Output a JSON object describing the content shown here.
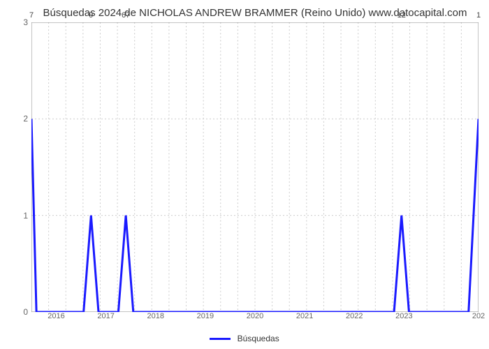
{
  "chart": {
    "type": "line",
    "title": "Búsquedas 2024 de NICHOLAS ANDREW BRAMMER (Reino Unido) www.datocapital.com",
    "title_fontsize": 15,
    "title_color": "#333333",
    "background_color": "#ffffff",
    "line_color": "#1a1aff",
    "line_width": 3,
    "grid_color": "#cccccc",
    "grid_dash": "2,3",
    "axis_color": "#888888",
    "border_top_color": "#888888",
    "border_right_color": "#888888",
    "ylim": [
      0,
      3
    ],
    "yticks": [
      0,
      1,
      2,
      3
    ],
    "ytick_fontsize": 12,
    "ytick_color": "#666666",
    "xlim": [
      2015.5,
      2024.5
    ],
    "xticks": [
      2016,
      2017,
      2018,
      2019,
      2020,
      2021,
      2022,
      2023
    ],
    "xtick_labels": [
      "2016",
      "2017",
      "2018",
      "2019",
      "2020",
      "2021",
      "2022",
      "2023"
    ],
    "xtick_right_label": "202",
    "xtick_fontsize": 11,
    "xtick_color": "#666666",
    "legend": {
      "label": "Búsquedas",
      "color": "#1a1aff",
      "fontsize": 12
    },
    "data_points": [
      {
        "x": 2015.5,
        "y": 2.0,
        "label": "7",
        "label_y": 3.05
      },
      {
        "x": 2015.6,
        "y": 0
      },
      {
        "x": 2016.55,
        "y": 0
      },
      {
        "x": 2016.7,
        "y": 1.0,
        "label": "9",
        "label_y": 3.05
      },
      {
        "x": 2016.85,
        "y": 0
      },
      {
        "x": 2017.25,
        "y": 0
      },
      {
        "x": 2017.4,
        "y": 1.0,
        "label": "67",
        "label_y": 3.05
      },
      {
        "x": 2017.55,
        "y": 0
      },
      {
        "x": 2022.8,
        "y": 0
      },
      {
        "x": 2022.95,
        "y": 1.0,
        "label": "12",
        "label_y": 3.05
      },
      {
        "x": 2023.1,
        "y": 0
      },
      {
        "x": 2024.3,
        "y": 0
      },
      {
        "x": 2024.5,
        "y": 2.0,
        "label": "1",
        "label_y": 3.05
      }
    ],
    "vgrid_count": 26
  }
}
